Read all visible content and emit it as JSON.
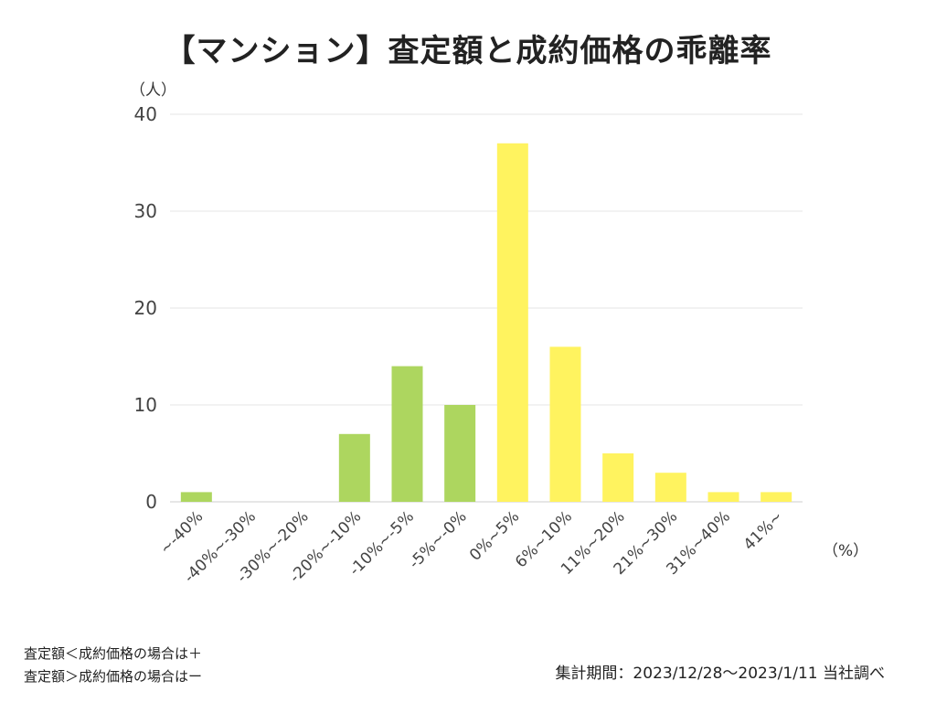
{
  "chart_data": {
    "type": "bar",
    "title": "【マンション】査定額と成約価格の乖離率",
    "ylabel": "（人）",
    "xlabel": "（%）",
    "ylim": [
      0,
      40
    ],
    "yticks": [
      0,
      10,
      20,
      30,
      40
    ],
    "grid": true,
    "categories": [
      "~-40%",
      "-40%~-30%",
      "-30%~-20%",
      "-20%~-10%",
      "-10%~-5%",
      "-5%~-0%",
      "0%~5%",
      "6%~10%",
      "11%~20%",
      "21%~30%",
      "31%~40%",
      "41%~"
    ],
    "values": [
      1,
      0,
      0,
      7,
      14,
      10,
      37,
      16,
      5,
      3,
      1,
      1
    ],
    "colors": [
      "#add65f",
      "#add65f",
      "#add65f",
      "#add65f",
      "#add65f",
      "#add65f",
      "#fff35f",
      "#fff35f",
      "#fff35f",
      "#fff35f",
      "#fff35f",
      "#fff35f"
    ]
  },
  "notes": {
    "plus": "査定額＜成約価格の場合は＋",
    "minus": "査定額＞成約価格の場合はー"
  },
  "period": "集計期間：2023/12/28〜2023/1/11 当社調べ"
}
